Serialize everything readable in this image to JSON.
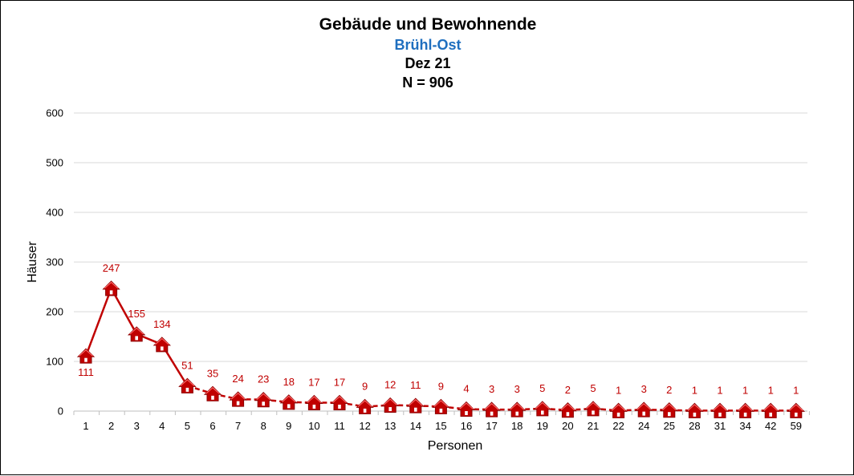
{
  "chart_data": {
    "type": "line",
    "title": "Gebäude und Bewohnende",
    "subtitle_lines": [
      "Brühl-Ost",
      "Dez 21",
      "N = 906"
    ],
    "xlabel": "Personen",
    "ylabel": "Häuser",
    "ylim": [
      0,
      600
    ],
    "yticks": [
      "0",
      "100",
      "200",
      "300",
      "400",
      "500",
      "600"
    ],
    "grid": true,
    "legend": "none",
    "marker": "house-icon",
    "categories": [
      "1",
      "2",
      "3",
      "4",
      "5",
      "6",
      "7",
      "8",
      "9",
      "10",
      "11",
      "12",
      "13",
      "14",
      "15",
      "16",
      "17",
      "18",
      "19",
      "20",
      "21",
      "22",
      "24",
      "25",
      "28",
      "31",
      "34",
      "42",
      "59"
    ],
    "values": [
      111,
      247,
      155,
      134,
      51,
      35,
      24,
      23,
      18,
      17,
      17,
      9,
      12,
      11,
      9,
      4,
      3,
      3,
      5,
      2,
      5,
      1,
      3,
      2,
      1,
      1,
      1,
      1,
      1
    ],
    "data_labels": [
      "111",
      "247",
      "155",
      "134",
      "51",
      "35",
      "24",
      "23",
      "18",
      "17",
      "17",
      "9",
      "12",
      "11",
      "9",
      "4",
      "3",
      "3",
      "5",
      "2",
      "5",
      "1",
      "3",
      "2",
      "1",
      "1",
      "1",
      "1",
      "1"
    ]
  },
  "colors": {
    "series": "#c00000",
    "subtitle": "#1f6fbf",
    "grid": "#d9d9d9"
  }
}
